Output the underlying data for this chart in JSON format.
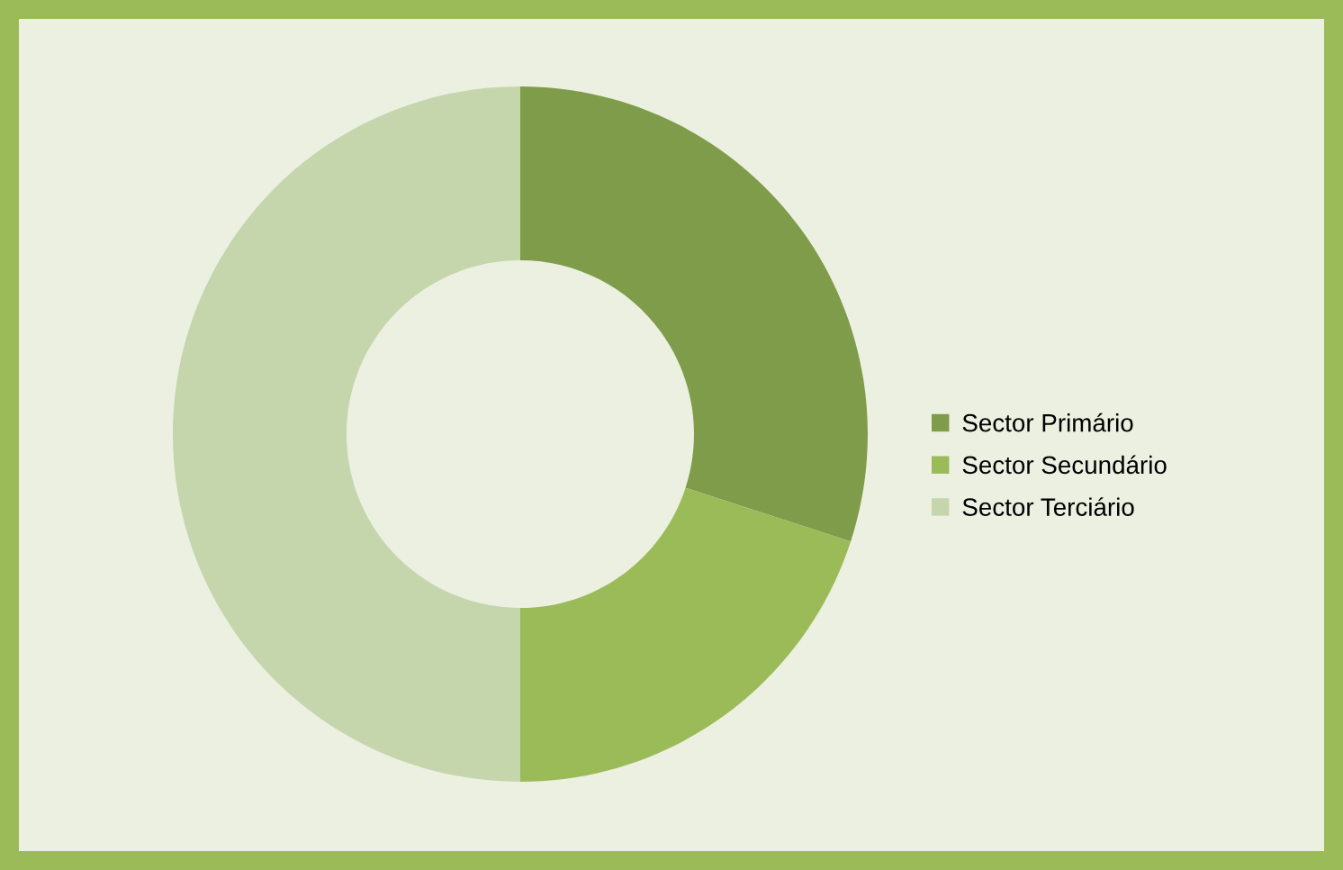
{
  "chart_data": {
    "type": "donut",
    "categories": [
      "Sector Primário",
      "Sector Secundário",
      "Sector Terciário"
    ],
    "values": [
      30,
      20,
      50
    ],
    "colors": [
      "#7f9c4a",
      "#9bbb59",
      "#c5d6ad"
    ],
    "legend": "right"
  }
}
